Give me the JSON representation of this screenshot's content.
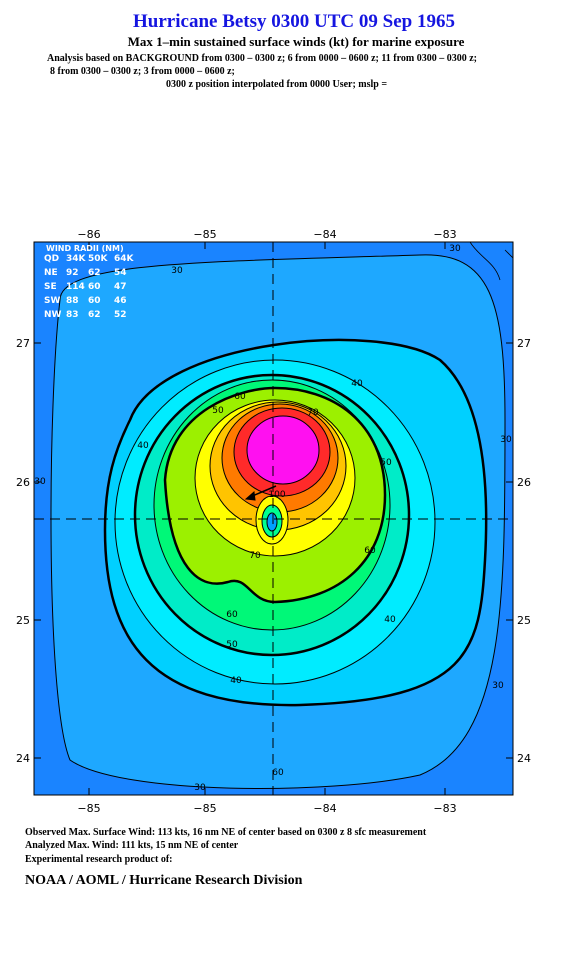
{
  "header": {
    "title": "Hurricane Betsy 0300 UTC 09 Sep 1965",
    "subtitle": "Max 1–min sustained surface winds (kt) for marine exposure",
    "analysis": [
      "Analysis based on  BACKGROUND from 0300 – 0300 z;  6 from 0000 – 0600 z;  11 from 0300 – 0300 z;",
      "8 from 0300 – 0300 z;  3 from 0000 – 0600 z;",
      "0300 z position interpolated from 0000 User; mslp ="
    ]
  },
  "map": {
    "top_ticks": [
      "−86",
      "−85",
      "−84",
      "−83"
    ],
    "bottom_ticks": [
      "−85",
      "−85",
      "−84",
      "−83"
    ],
    "left_ticks": [
      "27",
      "26",
      "25",
      "24"
    ],
    "right_ticks": [
      "27",
      "26",
      "25",
      "24"
    ],
    "wind_radii": {
      "title": "WIND RADII (NM)",
      "columns": [
        "QD",
        "34K",
        "50K",
        "64K"
      ],
      "rows": [
        [
          "NE",
          "92",
          "62",
          "54"
        ],
        [
          "SE",
          "114",
          "60",
          "47"
        ],
        [
          "SW",
          "88",
          "60",
          "46"
        ],
        [
          "NW",
          "83",
          "62",
          "52"
        ]
      ]
    },
    "contour_labels": [
      "30",
      "30",
      "30",
      "30",
      "30",
      "30",
      "40",
      "40",
      "40",
      "40",
      "60",
      "50",
      "70",
      "50",
      "60",
      "70",
      "60",
      "50",
      "60",
      "100"
    ]
  },
  "footer": [
    "Observed Max. Surface Wind: 113 kts, 16 nm NE of center based on 0300 z 8 sfc measurement",
    "Analyzed Max. Wind: 111 kts, 15 nm NE of center",
    "Experimental research product of:",
    "NOAA / AOML / Hurricane Research Division"
  ]
}
